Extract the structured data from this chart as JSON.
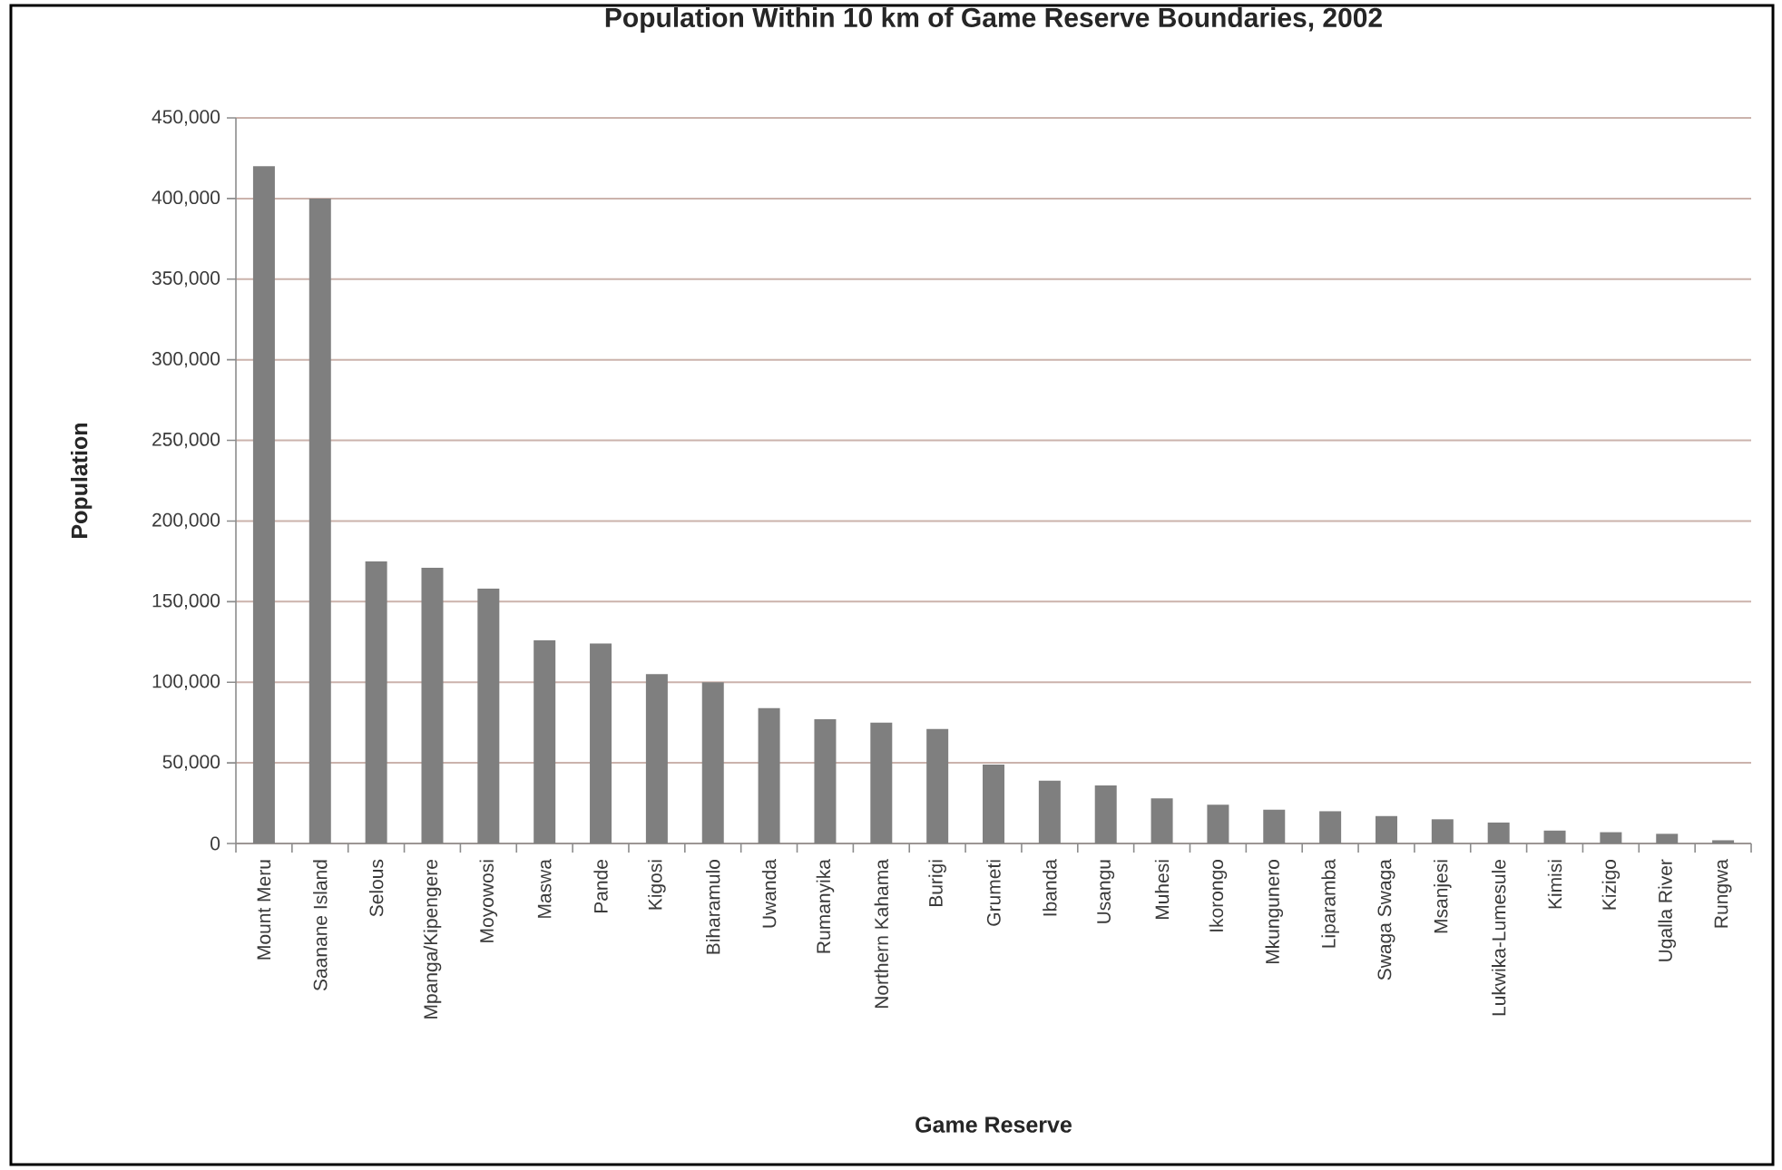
{
  "chart_data": {
    "type": "bar",
    "title": "Population Within 10 km of Game Reserve Boundaries, 2002",
    "xlabel": "Game Reserve",
    "ylabel": "Population",
    "categories": [
      "Mount Meru",
      "Saanane Island",
      "Selous",
      "Mpanga/Kipengere",
      "Moyowosi",
      "Maswa",
      "Pande",
      "Kigosi",
      "Biharamulo",
      "Uwanda",
      "Rumanyika",
      "Northern Kahama",
      "Burigi",
      "Grumeti",
      "Ibanda",
      "Usangu",
      "Muhesi",
      "Ikorongo",
      "Mkungunero",
      "Liparamba",
      "Swaga Swaga",
      "Msanjesi",
      "Lukwika-Lumesule",
      "Kimisi",
      "Kizigo",
      "Ugalla River",
      "Rungwa"
    ],
    "values": [
      420000,
      400000,
      175000,
      171000,
      158000,
      126000,
      124000,
      105000,
      100000,
      84000,
      77000,
      75000,
      71000,
      49000,
      39000,
      36000,
      28000,
      24000,
      21000,
      20000,
      17000,
      15000,
      13000,
      8000,
      7000,
      6000,
      2000
    ],
    "color": "#7f7f7f",
    "ylim": [
      0,
      450000
    ],
    "yticks": [
      {
        "value": 0,
        "label": "0"
      },
      {
        "value": 50000,
        "label": "50,000"
      },
      {
        "value": 100000,
        "label": "100,000"
      },
      {
        "value": 150000,
        "label": "150,000"
      },
      {
        "value": 200000,
        "label": "200,000"
      },
      {
        "value": 250000,
        "label": "250,000"
      },
      {
        "value": 300000,
        "label": "300,000"
      },
      {
        "value": 350000,
        "label": "350,000"
      },
      {
        "value": 400000,
        "label": "400,000"
      },
      {
        "value": 450000,
        "label": "450,000"
      }
    ],
    "grid": "y"
  }
}
